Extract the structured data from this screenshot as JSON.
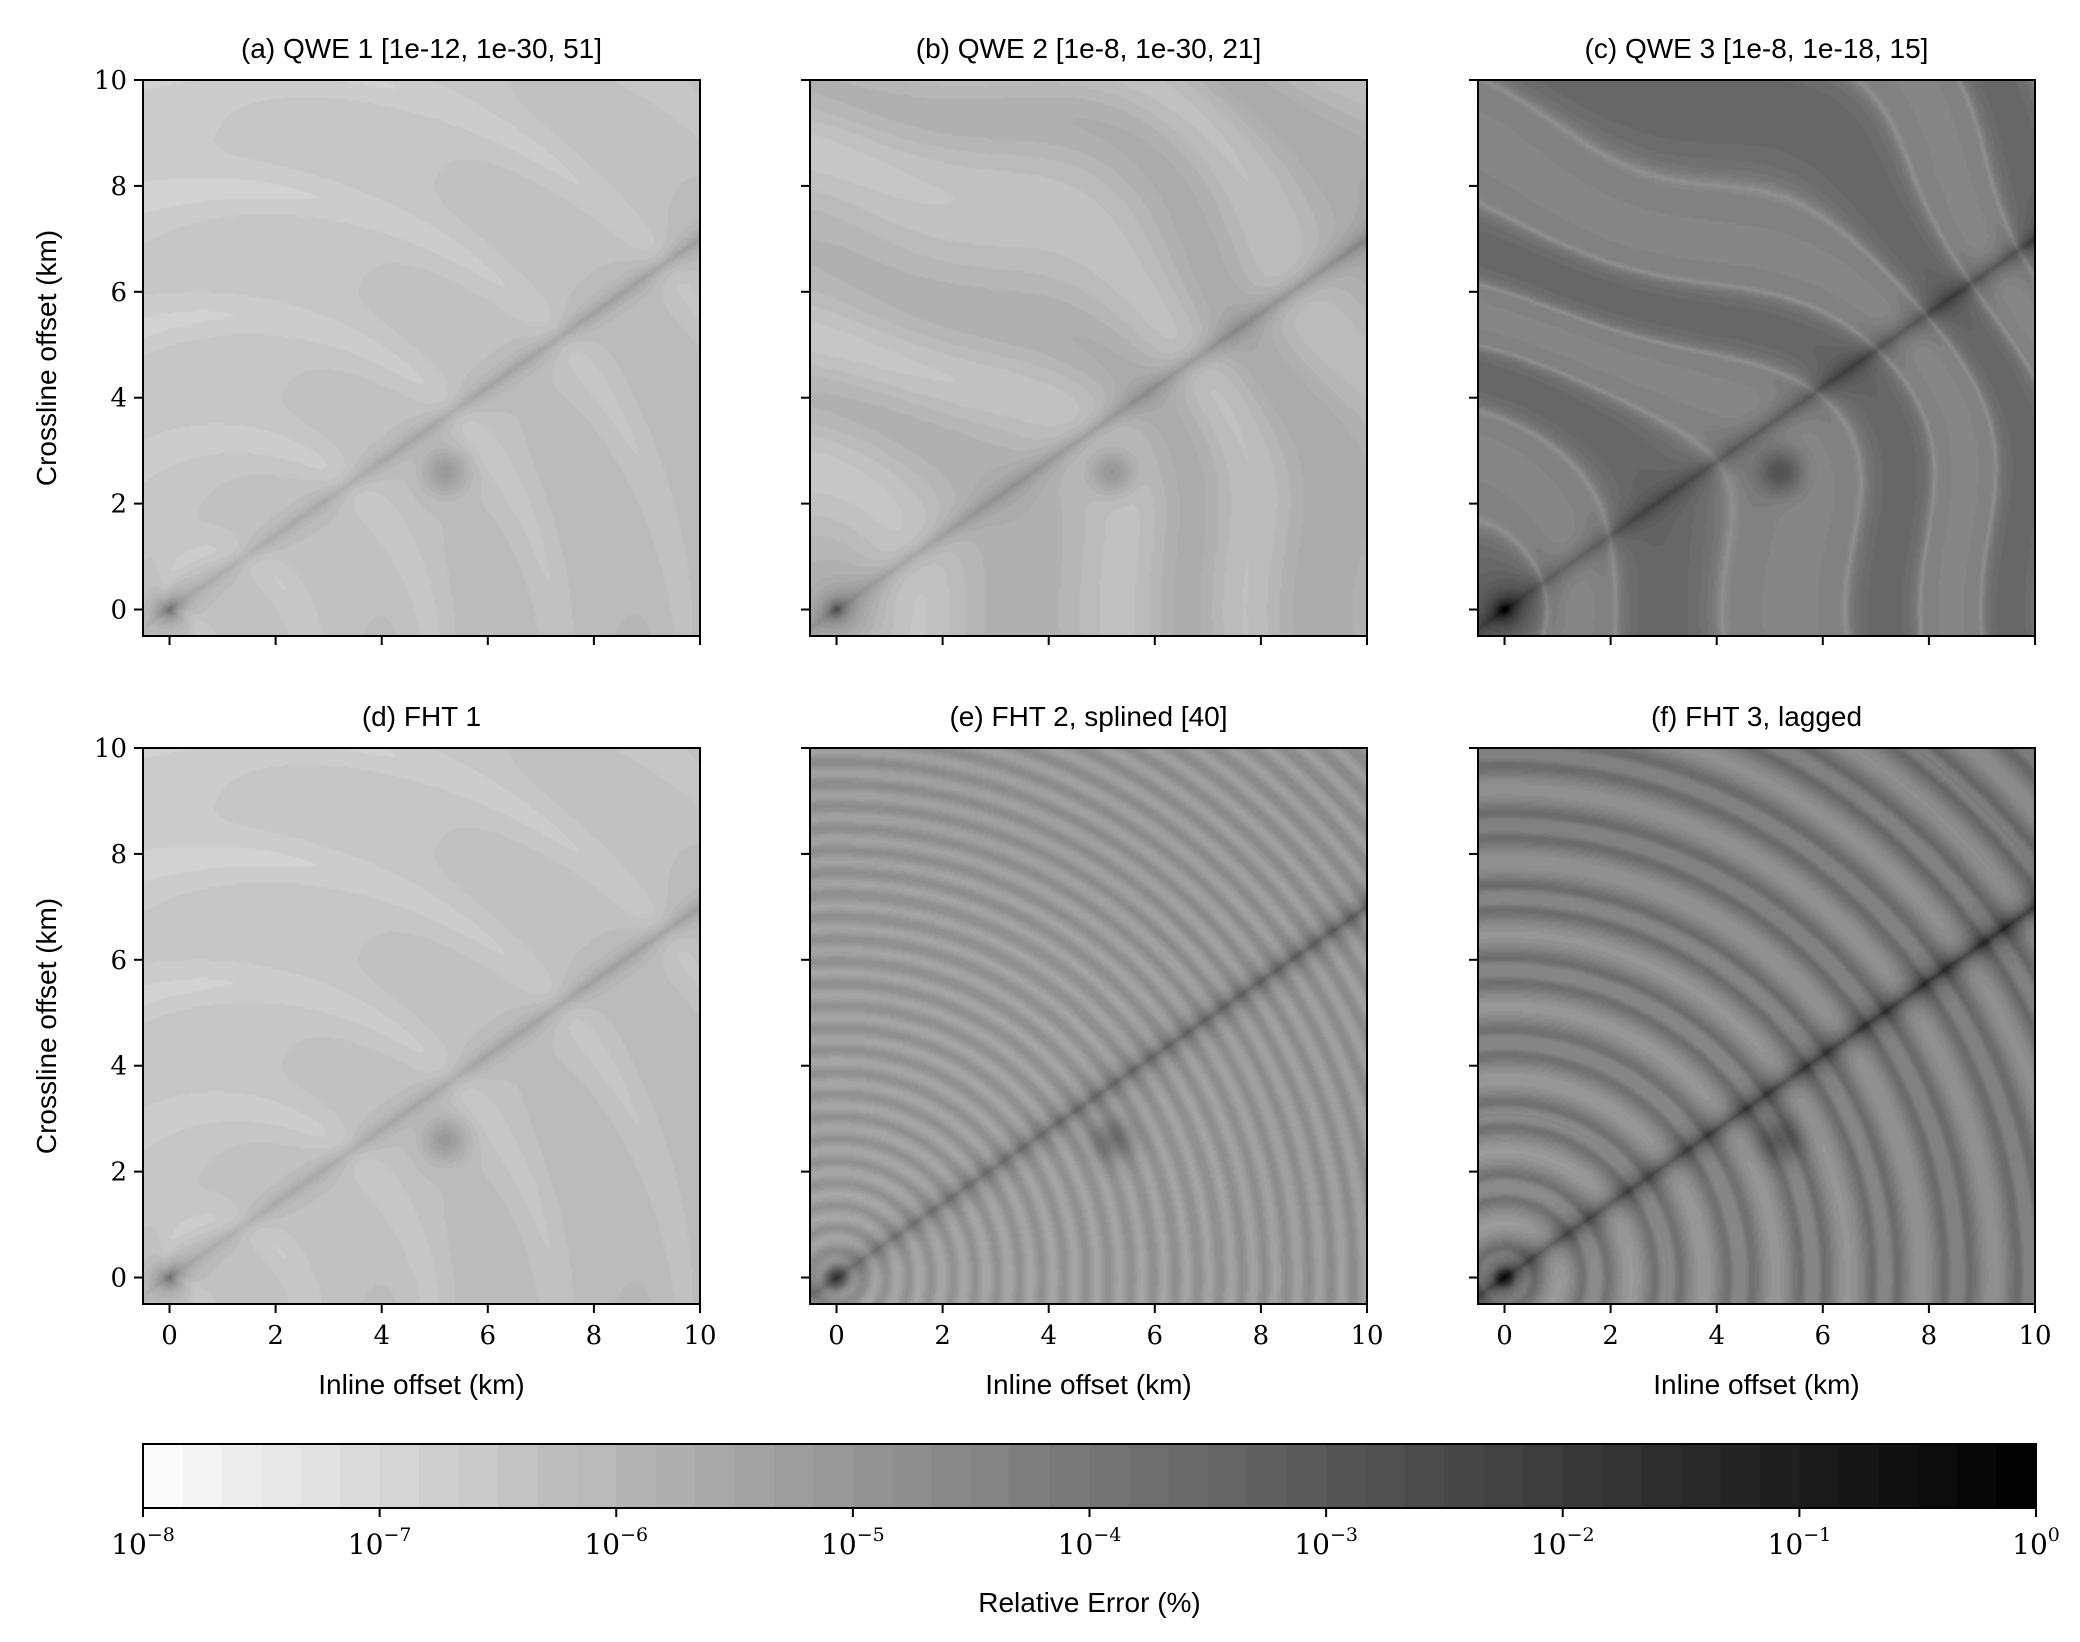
{
  "chart_data": {
    "type": "heatmap",
    "colormap": "Greys",
    "colorbar": {
      "label": "Relative Error (%)",
      "scale": "log",
      "range": [
        1e-08,
        1
      ],
      "ticks": [
        {
          "base": "10",
          "exp": "−8"
        },
        {
          "base": "10",
          "exp": "−7"
        },
        {
          "base": "10",
          "exp": "−6"
        },
        {
          "base": "10",
          "exp": "−5"
        },
        {
          "base": "10",
          "exp": "−4"
        },
        {
          "base": "10",
          "exp": "−3"
        },
        {
          "base": "10",
          "exp": "−2"
        },
        {
          "base": "10",
          "exp": "−1"
        },
        {
          "base": "10",
          "exp": "0"
        }
      ],
      "levels": 48,
      "placement": "bottom"
    },
    "panels": [
      {
        "id": "a",
        "title": "(a) QWE 1 [1e-12, 1e-30, 51]",
        "row": 0,
        "col": 0,
        "xlabel": "",
        "ylabel": "Crossline offset (km)",
        "xlim": [
          -0.5,
          10
        ],
        "ylim": [
          -0.5,
          10
        ],
        "base_level": -6.3,
        "background_error_pct": 5e-07,
        "max_error_pct": 0.003,
        "pattern": "smooth"
      },
      {
        "id": "b",
        "title": "(b) QWE 2 [1e-8, 1e-30, 21]",
        "row": 0,
        "col": 1,
        "xlabel": "",
        "ylabel": "",
        "xlim": [
          -0.5,
          10
        ],
        "ylim": [
          -0.5,
          10
        ],
        "base_level": -6.1,
        "background_error_pct": 8e-07,
        "max_error_pct": 0.1,
        "pattern": "blobs"
      },
      {
        "id": "c",
        "title": "(c) QWE 3 [1e-8, 1e-18, 15]",
        "row": 0,
        "col": 2,
        "xlabel": "",
        "ylabel": "",
        "xlim": [
          -0.5,
          10
        ],
        "ylim": [
          -0.5,
          10
        ],
        "base_level": -3.9,
        "background_error_pct": 0.00012,
        "max_error_pct": 0.1,
        "pattern": "blobs-strong"
      },
      {
        "id": "d",
        "title": "(d) FHT 1",
        "row": 1,
        "col": 0,
        "xlabel": "Inline offset (km)",
        "ylabel": "Crossline offset (km)",
        "xlim": [
          -0.5,
          10
        ],
        "ylim": [
          -0.5,
          10
        ],
        "base_level": -6.3,
        "background_error_pct": 5e-07,
        "max_error_pct": 0.003,
        "pattern": "smooth"
      },
      {
        "id": "e",
        "title": "(e) FHT 2, splined [40]",
        "row": 1,
        "col": 1,
        "xlabel": "Inline offset (km)",
        "ylabel": "",
        "xlim": [
          -0.5,
          10
        ],
        "ylim": [
          -0.5,
          10
        ],
        "base_level": -5.2,
        "background_error_pct": 6e-06,
        "max_error_pct": 0.005,
        "pattern": "fine-rings"
      },
      {
        "id": "f",
        "title": "(f) FHT 3, lagged",
        "row": 1,
        "col": 2,
        "xlabel": "Inline offset (km)",
        "ylabel": "",
        "xlim": [
          -0.5,
          10
        ],
        "ylim": [
          -0.5,
          10
        ],
        "base_level": -4.2,
        "background_error_pct": 6e-05,
        "max_error_pct": 0.05,
        "pattern": "rings"
      }
    ],
    "xticks": [
      "0",
      "2",
      "4",
      "6",
      "8",
      "10"
    ],
    "yticks": [
      "0",
      "2",
      "4",
      "6",
      "8",
      "10"
    ],
    "xtick_values": [
      0,
      2,
      4,
      6,
      8,
      10
    ],
    "ytick_values": [
      0,
      2,
      4,
      6,
      8,
      10
    ],
    "grid": false
  }
}
